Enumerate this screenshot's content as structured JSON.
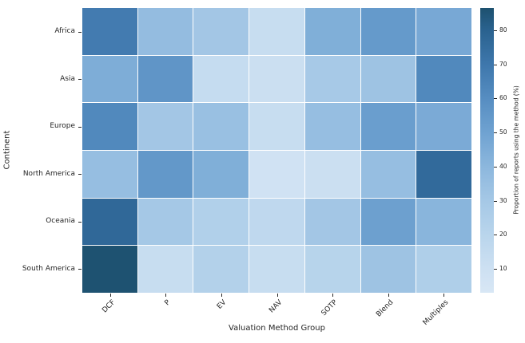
{
  "figure": {
    "background_color": "#ffffff",
    "text_color": "#262626"
  },
  "chart_data": {
    "type": "heatmap",
    "title": "",
    "xlabel": "Valuation Method Group",
    "ylabel": "Continent",
    "colorbar_label": "Proportion of reports using the method (%)",
    "categories_x": [
      "DCF",
      "P",
      "EV",
      "NAV",
      "SOTP",
      "Blend",
      "Multiples"
    ],
    "categories_y": [
      "Africa",
      "Asia",
      "Europe",
      "North America",
      "Oceania",
      "South America"
    ],
    "values": [
      [
        68,
        37,
        31,
        13,
        44,
        54,
        47
      ],
      [
        45,
        56,
        14,
        11,
        29,
        33,
        62
      ],
      [
        62,
        31,
        35,
        13,
        36,
        52,
        46
      ],
      [
        36,
        55,
        44,
        8,
        11,
        36,
        76
      ],
      [
        77,
        30,
        24,
        17,
        31,
        51,
        41
      ],
      [
        86,
        13,
        23,
        13,
        21,
        33,
        25
      ]
    ],
    "vmin": 3,
    "vmax": 86.5,
    "colorbar_ticks": [
      10,
      20,
      30,
      40,
      50,
      60,
      70,
      80
    ],
    "colormap_stops": [
      [
        3,
        "#d8e7f5"
      ],
      [
        10,
        "#cde0f2"
      ],
      [
        20,
        "#b9d5ec"
      ],
      [
        30,
        "#a5c8e6"
      ],
      [
        40,
        "#8cb7dd"
      ],
      [
        50,
        "#6fa2d1"
      ],
      [
        60,
        "#568dc1"
      ],
      [
        70,
        "#3e77ac"
      ],
      [
        80,
        "#2a628f"
      ],
      [
        86.5,
        "#1d516f"
      ]
    ],
    "grid_on": false,
    "cell_divider_color": "#ffffff",
    "legend_position": "right-colorbar"
  }
}
